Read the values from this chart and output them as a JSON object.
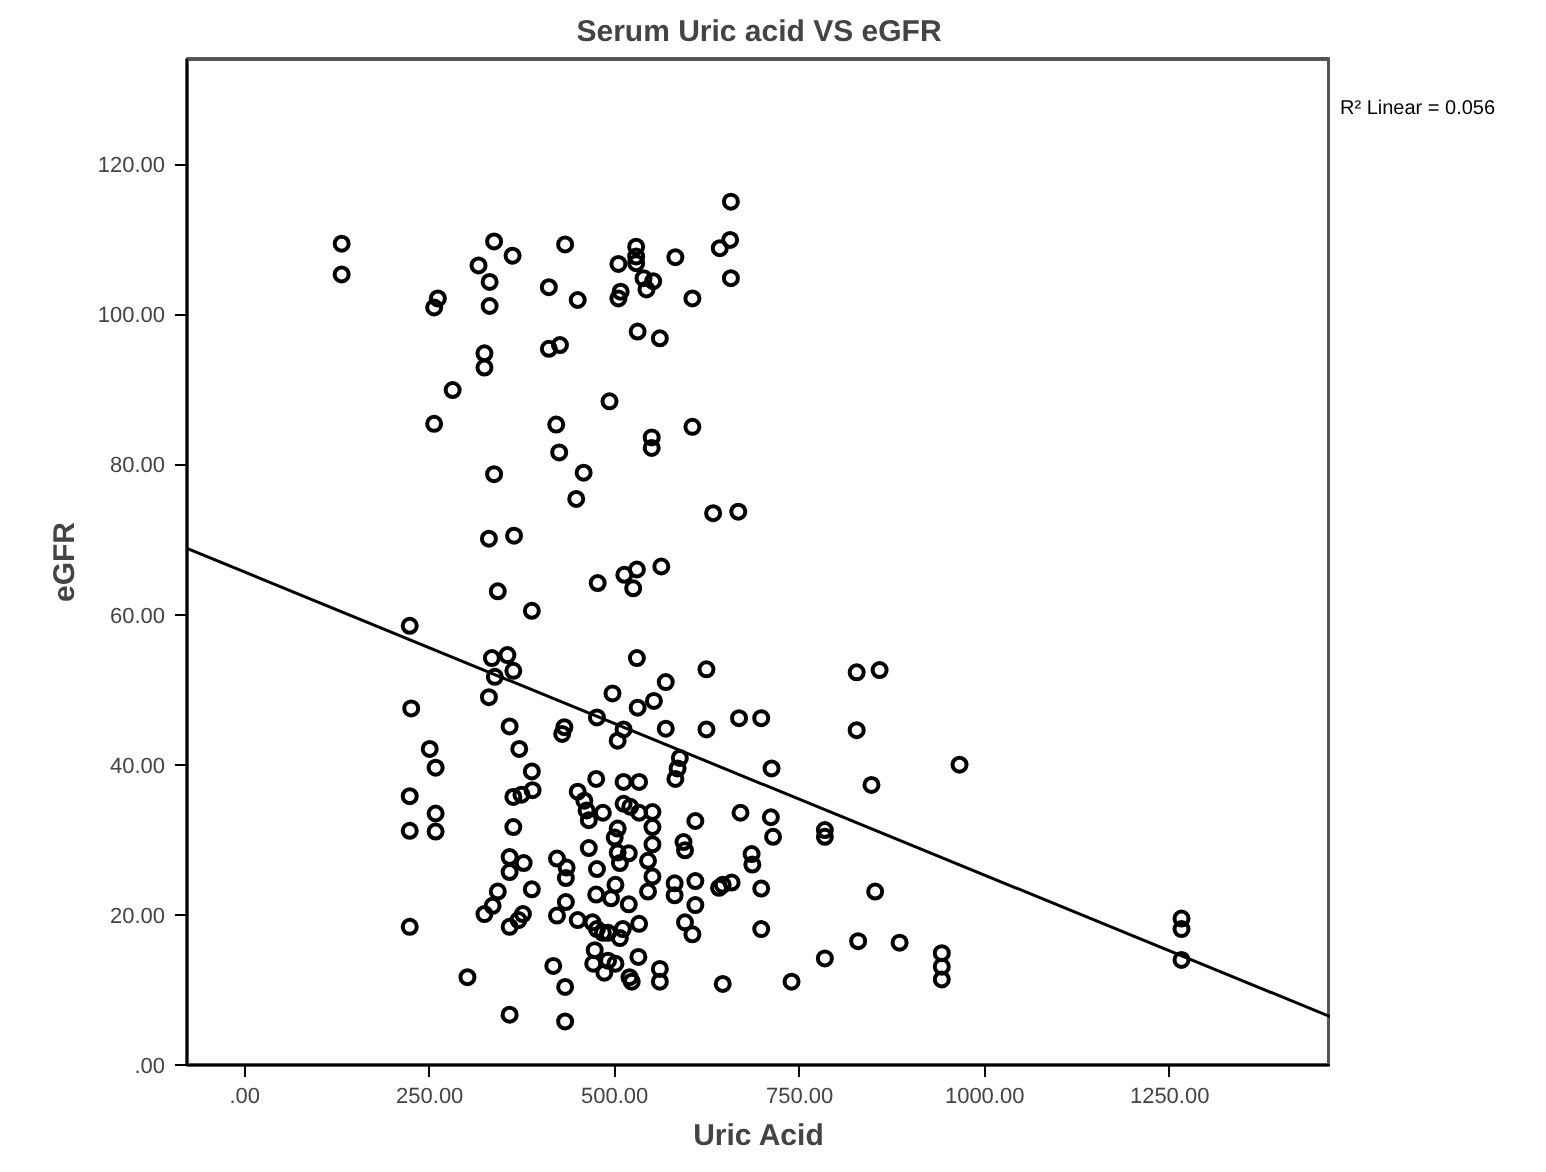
{
  "chart_data": {
    "type": "scatter",
    "title": "Serum Uric acid VS eGFR",
    "xlabel": "Uric Acid",
    "ylabel": "eGFR",
    "grid": false,
    "xlim": [
      -78,
      1468
    ],
    "ylim": [
      0,
      134
    ],
    "xticks": [
      {
        "value": 0,
        "label": ".00"
      },
      {
        "value": 250,
        "label": "250.00"
      },
      {
        "value": 500,
        "label": "500.00"
      },
      {
        "value": 750,
        "label": "750.00"
      },
      {
        "value": 1000,
        "label": "1000.00"
      },
      {
        "value": 1250,
        "label": "1250.00"
      }
    ],
    "yticks": [
      {
        "value": 0,
        "label": ".00"
      },
      {
        "value": 20,
        "label": "20.00"
      },
      {
        "value": 40,
        "label": "40.00"
      },
      {
        "value": 60,
        "label": "60.00"
      },
      {
        "value": 80,
        "label": "80.00"
      },
      {
        "value": 100,
        "label": "100.00"
      },
      {
        "value": 120,
        "label": "120.00"
      }
    ],
    "annotations": [
      "R² Linear = 0.056"
    ],
    "series": [
      {
        "marker": "circle",
        "color": "#000000",
        "x": [
          131,
          131,
          657,
          656,
          642,
          657,
          337,
          316,
          362,
          331,
          331,
          261,
          256,
          433,
          411,
          450,
          529,
          529,
          529,
          505,
          539,
          552,
          543,
          582,
          605,
          505,
          508,
          531,
          561,
          324,
          324,
          411,
          426,
          281,
          256,
          493,
          421,
          425,
          458,
          550,
          550,
          605,
          337,
          448,
          633,
          667,
          330,
          364,
          530,
          563,
          513,
          525,
          477,
          342,
          388,
          223,
          334,
          355,
          363,
          338,
          530,
          569,
          624,
          330,
          497,
          531,
          553,
          476,
          512,
          504,
          569,
          624,
          668,
          698,
          225,
          358,
          432,
          429,
          588,
          585,
          582,
          712,
          250,
          258,
          371,
          388,
          223,
          258,
          223,
          258,
          223,
          363,
          374,
          389,
          363,
          358,
          377,
          358,
          388,
          342,
          335,
          324,
          376,
          358,
          370,
          301,
          358,
          433,
          417,
          433,
          422,
          435,
          434,
          434,
          422,
          450,
          450,
          459,
          462,
          465,
          475,
          465,
          476,
          475,
          470,
          476,
          484,
          484,
          504,
          500,
          504,
          507,
          501,
          495,
          512,
          533,
          512,
          521,
          533,
          551,
          551,
          551,
          545,
          551,
          545,
          519,
          519,
          511,
          507,
          533,
          491,
          473,
          471,
          491,
          486,
          501,
          520,
          523,
          532,
          561,
          561,
          593,
          595,
          609,
          581,
          581,
          609,
          609,
          595,
          605,
          641,
          646,
          658,
          670,
          711,
          714,
          685,
          686,
          698,
          698,
          646,
          827,
          858,
          827,
          966,
          847,
          784,
          784,
          852,
          829,
          885,
          784,
          739,
          942,
          942,
          942,
          1266,
          1266,
          1266
        ],
        "values": [
          109.4,
          105.3,
          115,
          109.9,
          108.8,
          104.8,
          109.7,
          106.5,
          107.8,
          104.3,
          101.1,
          102.1,
          100.9,
          109.3,
          103.6,
          101.9,
          109,
          107.7,
          106.8,
          106.7,
          104.8,
          104.4,
          103.3,
          107.6,
          102.1,
          102.1,
          103,
          97.7,
          96.8,
          94.8,
          92.9,
          95.4,
          95.9,
          89.9,
          85.4,
          88.4,
          85.3,
          81.6,
          78.9,
          83.6,
          82.2,
          85,
          78.7,
          75.4,
          73.5,
          73.7,
          70.1,
          70.5,
          66,
          66.4,
          65.3,
          63.5,
          64.2,
          63.1,
          60.5,
          58.5,
          54.2,
          54.6,
          52.5,
          51.7,
          54.2,
          51,
          52.7,
          49,
          49.5,
          47.6,
          48.5,
          46.3,
          44.7,
          43.2,
          44.8,
          44.7,
          46.2,
          46.2,
          47.5,
          45.1,
          45,
          44.1,
          40.9,
          39.5,
          38.1,
          39.5,
          42.1,
          39.6,
          42.1,
          39.1,
          35.8,
          33.5,
          31.2,
          31.1,
          18.4,
          35.7,
          36,
          36.6,
          31.7,
          27.7,
          26.9,
          25.7,
          23.4,
          23.1,
          21.2,
          20.1,
          20.1,
          18.4,
          19.3,
          11.7,
          6.7,
          5.8,
          13.2,
          10.4,
          27.5,
          26.3,
          24.9,
          21.7,
          19.9,
          19.3,
          36.4,
          35.2,
          33.9,
          32.6,
          38.1,
          28.9,
          26.1,
          22.7,
          19,
          18.1,
          17.6,
          33.6,
          31.5,
          30.3,
          28.3,
          26.9,
          24,
          22.2,
          37.7,
          37.7,
          34.8,
          34.4,
          33.6,
          33.7,
          31.7,
          29.4,
          27.2,
          25.1,
          23.1,
          28.2,
          21.4,
          18.1,
          16.9,
          18.8,
          17.6,
          15.3,
          13.5,
          13.9,
          12.3,
          13.5,
          11.7,
          11.1,
          14.4,
          12.8,
          11.1,
          29.7,
          28.6,
          32.5,
          24.2,
          22.6,
          24.5,
          21.3,
          19,
          17.4,
          23.6,
          24,
          24.3,
          33.6,
          33,
          30.4,
          28.1,
          26.7,
          23.5,
          18.1,
          10.8,
          52.3,
          52.6,
          44.6,
          40,
          37.3,
          31.3,
          30.4,
          23.1,
          16.5,
          16.3,
          14.2,
          11.1,
          14.9,
          13.1,
          11.4,
          19.5,
          18.1,
          14
        ]
      },
      {
        "type": "line",
        "color": "#000000",
        "x": [
          -78,
          1468
        ],
        "values": [
          68.8,
          6.4
        ]
      }
    ]
  }
}
